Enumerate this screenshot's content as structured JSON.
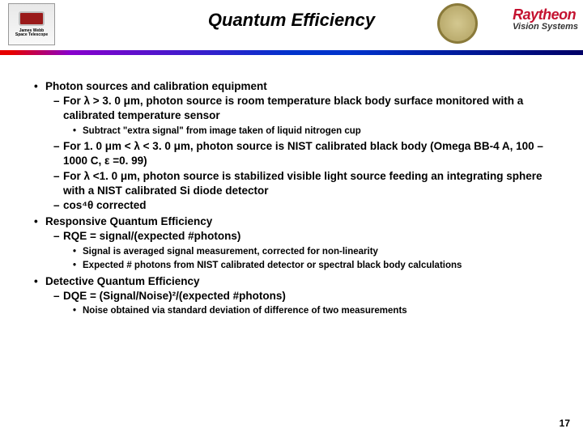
{
  "header": {
    "title": "Quantum Efficiency",
    "logo_left_line1": "James Webb",
    "logo_left_line2": "Space Telescope",
    "logo_right_brand": "Raytheon",
    "logo_right_sub": "Vision Systems"
  },
  "colors": {
    "brand_red": "#c41230",
    "divider_start": "#e60000",
    "divider_mid": "#8800cc",
    "divider_end": "#000066"
  },
  "bullets": {
    "b1": "Photon sources and calibration equipment",
    "b1a": "For λ > 3. 0 μm, photon source is room temperature black body surface monitored with a calibrated temperature sensor",
    "b1a_i": "Subtract \"extra signal\" from image taken of liquid nitrogen cup",
    "b1b": "For  1. 0 μm < λ < 3. 0 μm, photon source is NIST calibrated black body (Omega BB-4 A, 100 – 1000 C, ε =0. 99)",
    "b1c": "For λ <1. 0 μm, photon source is stabilized visible light source feeding an integrating sphere with a NIST calibrated Si diode detector",
    "b1d": "cos⁴θ corrected",
    "b2": "Responsive Quantum Efficiency",
    "b2a": "RQE = signal/(expected #photons)",
    "b2a_i": "Signal is averaged signal measurement, corrected for non-linearity",
    "b2a_ii": "Expected # photons from NIST calibrated detector or spectral black body calculations",
    "b3": "Detective Quantum Efficiency",
    "b3a": "DQE = (Signal/Noise)²/(expected #photons)",
    "b3a_i": "Noise obtained via standard deviation of difference of two measurements"
  },
  "page_number": "17"
}
